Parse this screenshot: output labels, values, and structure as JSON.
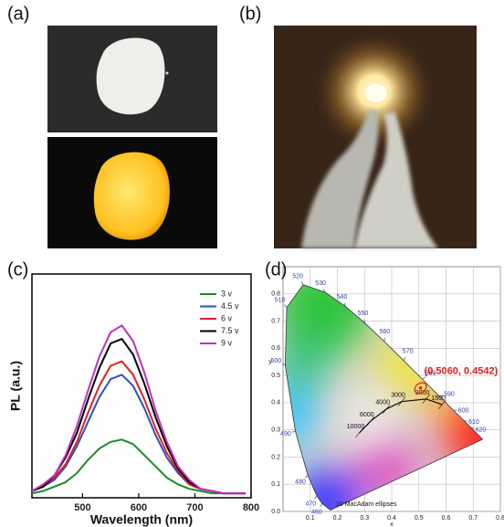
{
  "panel_labels": [
    "(a)",
    "(b)",
    "(c)",
    "(d)"
  ],
  "chart_data": [
    {
      "type": "line",
      "xlabel": "Wavelength (nm)",
      "ylabel": "PL (a.u.)",
      "x": [
        410,
        430,
        450,
        470,
        490,
        510,
        530,
        550,
        570,
        590,
        610,
        630,
        650,
        670,
        690,
        710,
        730,
        750,
        770,
        790
      ],
      "xlim": [
        410,
        800
      ],
      "xticks": [
        500,
        600,
        700,
        800
      ],
      "ylim": [
        0,
        1
      ],
      "legend": "upper right",
      "series": [
        {
          "name": "3 v",
          "color": "#1a8a2a",
          "values": [
            0.02,
            0.03,
            0.05,
            0.07,
            0.11,
            0.17,
            0.22,
            0.25,
            0.26,
            0.24,
            0.19,
            0.14,
            0.09,
            0.06,
            0.04,
            0.03,
            0.02,
            0.02,
            0.02,
            0.02
          ]
        },
        {
          "name": "4.5 v",
          "color": "#3050c0",
          "values": [
            0.03,
            0.05,
            0.08,
            0.14,
            0.23,
            0.34,
            0.45,
            0.53,
            0.55,
            0.5,
            0.4,
            0.28,
            0.18,
            0.11,
            0.06,
            0.04,
            0.03,
            0.02,
            0.02,
            0.02
          ]
        },
        {
          "name": "6 v",
          "color": "#e02020",
          "values": [
            0.03,
            0.05,
            0.09,
            0.15,
            0.25,
            0.38,
            0.5,
            0.59,
            0.61,
            0.55,
            0.44,
            0.31,
            0.2,
            0.12,
            0.06,
            0.04,
            0.03,
            0.02,
            0.02,
            0.02
          ]
        },
        {
          "name": "7.5 v",
          "color": "#000000",
          "values": [
            0.03,
            0.05,
            0.1,
            0.18,
            0.29,
            0.44,
            0.58,
            0.69,
            0.71,
            0.64,
            0.51,
            0.36,
            0.23,
            0.13,
            0.07,
            0.04,
            0.03,
            0.02,
            0.02,
            0.02
          ]
        },
        {
          "name": "9 v",
          "color": "#c030c0",
          "values": [
            0.03,
            0.06,
            0.1,
            0.19,
            0.32,
            0.48,
            0.63,
            0.74,
            0.77,
            0.7,
            0.56,
            0.39,
            0.25,
            0.14,
            0.08,
            0.04,
            0.03,
            0.02,
            0.02,
            0.02
          ]
        }
      ]
    },
    {
      "type": "cie",
      "xlabel": "x",
      "ylabel": "y",
      "xlim": [
        0,
        0.8
      ],
      "ylim": [
        0,
        0.9
      ],
      "xticks": [
        0.1,
        0.2,
        0.3,
        0.4,
        0.5,
        0.6,
        0.7,
        0.8
      ],
      "yticks": [
        {
          "value": 0,
          "label": "0.0"
        },
        0.1,
        0.2,
        0.3,
        0.4,
        0.5,
        0.6,
        0.7,
        0.8
      ],
      "grid": true,
      "locus": [
        {
          "x": 0.1741,
          "y": 0.005
        },
        {
          "x": 0.144,
          "y": 0.0297,
          "label": "460"
        },
        {
          "x": 0.1241,
          "y": 0.0578,
          "label": "470"
        },
        {
          "x": 0.0913,
          "y": 0.1327,
          "label": "480"
        },
        {
          "x": 0.0454,
          "y": 0.295,
          "label": "490"
        },
        {
          "x": 0.0082,
          "y": 0.5384,
          "label": "500"
        },
        {
          "x": 0.0139,
          "y": 0.7502,
          "label": "510"
        },
        {
          "x": 0.0743,
          "y": 0.8338,
          "label": "520"
        },
        {
          "x": 0.1547,
          "y": 0.8059,
          "label": "530"
        },
        {
          "x": 0.2296,
          "y": 0.7543,
          "label": "540"
        },
        {
          "x": 0.3016,
          "y": 0.6923,
          "label": "550"
        },
        {
          "x": 0.3731,
          "y": 0.6245,
          "label": "560"
        },
        {
          "x": 0.4441,
          "y": 0.5547,
          "label": "570"
        },
        {
          "x": 0.5125,
          "y": 0.4866,
          "label": "580"
        },
        {
          "x": 0.5752,
          "y": 0.4242,
          "label": "590"
        },
        {
          "x": 0.627,
          "y": 0.3725,
          "label": "600"
        },
        {
          "x": 0.6658,
          "y": 0.334,
          "label": "610"
        },
        {
          "x": 0.6915,
          "y": 0.3083,
          "label": "620"
        },
        {
          "x": 0.7347,
          "y": 0.2653
        }
      ],
      "planckian": [
        {
          "x": 0.2807,
          "y": 0.2884,
          "label": "10000"
        },
        {
          "x": 0.3221,
          "y": 0.3318,
          "label": "6000"
        },
        {
          "x": 0.3805,
          "y": 0.3768,
          "label": "4000"
        },
        {
          "x": 0.4369,
          "y": 0.4041,
          "label": "3000"
        },
        {
          "x": 0.5266,
          "y": 0.4133,
          "label": "2000"
        },
        {
          "x": 0.5857,
          "y": 0.3931,
          "label": "1500"
        }
      ],
      "point": {
        "x": 0.506,
        "y": 0.4542,
        "label": "(0.5060, 0.4542)",
        "color": "#e02020"
      },
      "note": "10 MacAdam ellipses"
    }
  ]
}
